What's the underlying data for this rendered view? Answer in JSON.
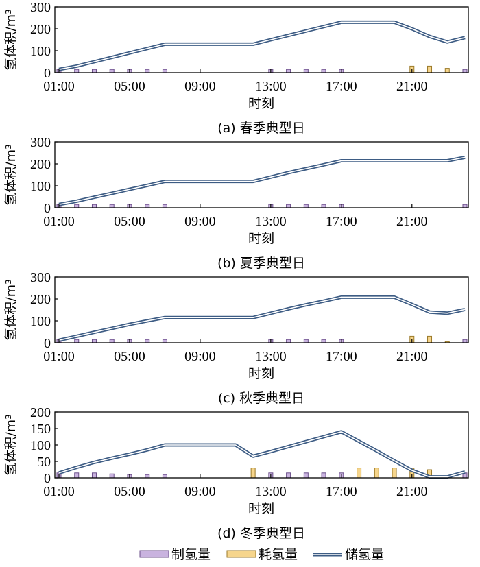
{
  "figure": {
    "legend": [
      {
        "key": "production",
        "label": "制氢量"
      },
      {
        "key": "consumption",
        "label": "耗氢量"
      },
      {
        "key": "storage",
        "label": "储氢量"
      }
    ]
  },
  "colors": {
    "production_fill": "#c9b3df",
    "production_edge": "#6b4f8a",
    "consumption_fill": "#f6d58c",
    "consumption_edge": "#9b7a2a",
    "storage_outer": "#3d5c84",
    "storage_inner": "#ffffff",
    "axis": "#000000"
  },
  "chart_data": [
    {
      "type": "bar+line",
      "caption": "(a) 春季典型日",
      "xlabel": "时刻",
      "ylabel": "氢体积/m³",
      "ylim": [
        0,
        300
      ],
      "yticks": [
        0,
        100,
        200,
        300
      ],
      "xticks": [
        "01:00",
        "05:00",
        "09:00",
        "13:00",
        "17:00",
        "21:00"
      ],
      "x_hours": [
        1,
        2,
        3,
        4,
        5,
        6,
        7,
        8,
        9,
        10,
        11,
        12,
        13,
        14,
        15,
        16,
        17,
        18,
        19,
        20,
        21,
        22,
        23,
        24
      ],
      "series": [
        {
          "name": "制氢量",
          "kind": "bar",
          "values": [
            15,
            15,
            15,
            15,
            15,
            15,
            15,
            0,
            0,
            0,
            0,
            0,
            15,
            15,
            15,
            15,
            15,
            0,
            0,
            0,
            0,
            0,
            0,
            15
          ]
        },
        {
          "name": "耗氢量",
          "kind": "bar",
          "values": [
            0,
            0,
            0,
            0,
            0,
            0,
            0,
            0,
            0,
            0,
            0,
            0,
            0,
            0,
            0,
            0,
            0,
            0,
            0,
            0,
            30,
            30,
            20,
            0
          ]
        },
        {
          "name": "储氢量",
          "kind": "line",
          "values": [
            15,
            30,
            50,
            70,
            90,
            110,
            130,
            130,
            130,
            130,
            130,
            130,
            150,
            170,
            190,
            210,
            230,
            230,
            230,
            230,
            200,
            165,
            140,
            160
          ]
        }
      ]
    },
    {
      "type": "bar+line",
      "caption": "(b) 夏季典型日",
      "xlabel": "时刻",
      "ylabel": "氢体积/m³",
      "ylim": [
        0,
        300
      ],
      "yticks": [
        0,
        100,
        200,
        300
      ],
      "xticks": [
        "01:00",
        "05:00",
        "09:00",
        "13:00",
        "17:00",
        "21:00"
      ],
      "x_hours": [
        1,
        2,
        3,
        4,
        5,
        6,
        7,
        8,
        9,
        10,
        11,
        12,
        13,
        14,
        15,
        16,
        17,
        18,
        19,
        20,
        21,
        22,
        23,
        24
      ],
      "series": [
        {
          "name": "制氢量",
          "kind": "bar",
          "values": [
            15,
            15,
            15,
            15,
            15,
            15,
            15,
            0,
            0,
            0,
            0,
            0,
            15,
            15,
            15,
            15,
            15,
            0,
            0,
            0,
            0,
            0,
            0,
            15
          ]
        },
        {
          "name": "耗氢量",
          "kind": "bar",
          "values": [
            0,
            0,
            0,
            0,
            0,
            0,
            0,
            0,
            0,
            0,
            0,
            0,
            0,
            0,
            0,
            0,
            0,
            0,
            0,
            0,
            0,
            0,
            0,
            0
          ]
        },
        {
          "name": "储氢量",
          "kind": "line",
          "values": [
            15,
            30,
            48,
            66,
            84,
            102,
            120,
            120,
            120,
            120,
            120,
            120,
            140,
            160,
            178,
            196,
            214,
            214,
            214,
            214,
            214,
            214,
            214,
            230
          ]
        }
      ]
    },
    {
      "type": "bar+line",
      "caption": "(c) 秋季典型日",
      "xlabel": "时刻",
      "ylabel": "氢体积/m³",
      "ylim": [
        0,
        300
      ],
      "yticks": [
        0,
        100,
        200,
        300
      ],
      "xticks": [
        "01:00",
        "05:00",
        "09:00",
        "13:00",
        "17:00",
        "21:00"
      ],
      "x_hours": [
        1,
        2,
        3,
        4,
        5,
        6,
        7,
        8,
        9,
        10,
        11,
        12,
        13,
        14,
        15,
        16,
        17,
        18,
        19,
        20,
        21,
        22,
        23,
        24
      ],
      "series": [
        {
          "name": "制氢量",
          "kind": "bar",
          "values": [
            15,
            15,
            15,
            15,
            15,
            15,
            15,
            0,
            0,
            0,
            0,
            0,
            15,
            15,
            15,
            15,
            15,
            0,
            0,
            0,
            0,
            0,
            0,
            15
          ]
        },
        {
          "name": "耗氢量",
          "kind": "bar",
          "values": [
            0,
            0,
            0,
            0,
            0,
            0,
            0,
            0,
            0,
            0,
            0,
            0,
            0,
            0,
            0,
            0,
            0,
            0,
            0,
            0,
            30,
            30,
            5,
            0
          ]
        },
        {
          "name": "储氢量",
          "kind": "line",
          "values": [
            12,
            30,
            48,
            66,
            84,
            100,
            115,
            115,
            115,
            115,
            115,
            115,
            135,
            155,
            173,
            190,
            208,
            208,
            208,
            208,
            175,
            140,
            135,
            152
          ]
        }
      ]
    },
    {
      "type": "bar+line",
      "caption": "(d) 冬季典型日",
      "xlabel": "时刻",
      "ylabel": "氢体积/m³",
      "ylim": [
        0,
        200
      ],
      "yticks": [
        0,
        50,
        100,
        150,
        200
      ],
      "xticks": [
        "01:00",
        "05:00",
        "09:00",
        "13:00",
        "17:00",
        "21:00"
      ],
      "x_hours": [
        1,
        2,
        3,
        4,
        5,
        6,
        7,
        8,
        9,
        10,
        11,
        12,
        13,
        14,
        15,
        16,
        17,
        18,
        19,
        20,
        21,
        22,
        23,
        24
      ],
      "series": [
        {
          "name": "制氢量",
          "kind": "bar",
          "values": [
            15,
            15,
            15,
            12,
            10,
            10,
            10,
            0,
            0,
            0,
            0,
            0,
            15,
            15,
            15,
            15,
            15,
            0,
            0,
            0,
            0,
            0,
            0,
            15
          ]
        },
        {
          "name": "耗氢量",
          "kind": "bar",
          "values": [
            0,
            0,
            0,
            0,
            0,
            0,
            0,
            0,
            0,
            0,
            0,
            30,
            0,
            0,
            0,
            0,
            0,
            30,
            30,
            30,
            30,
            25,
            0,
            0
          ]
        },
        {
          "name": "储氢量",
          "kind": "line",
          "values": [
            15,
            32,
            47,
            60,
            72,
            85,
            100,
            100,
            100,
            100,
            100,
            66,
            80,
            95,
            110,
            125,
            140,
            111,
            82,
            52,
            23,
            3,
            3,
            18
          ]
        }
      ]
    }
  ]
}
